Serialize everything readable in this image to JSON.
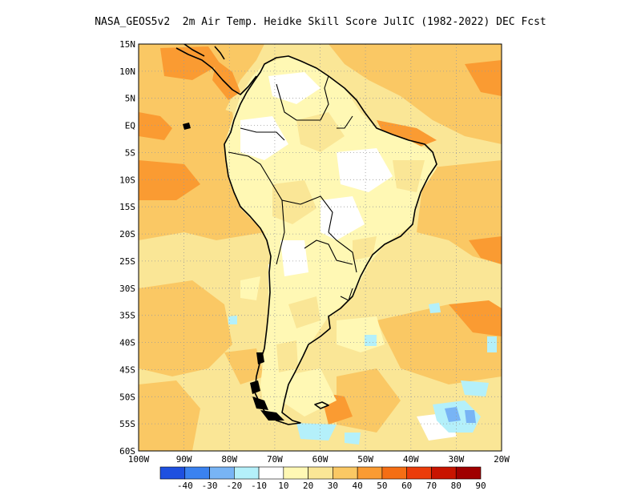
{
  "title": "NASA_GEOS5v2  2m Air Temp. Heidke Skill Score JulIC (1982-2022) DEC Fcst",
  "map": {
    "lon_range": [
      -100,
      -20
    ],
    "lat_range": [
      -60,
      15
    ],
    "grid": "dotted",
    "lat_labels": [
      "15N",
      "10N",
      "5N",
      "EQ",
      "5S",
      "10S",
      "15S",
      "20S",
      "25S",
      "30S",
      "35S",
      "40S",
      "45S",
      "50S",
      "55S",
      "60S"
    ],
    "lon_labels": [
      "100W",
      "90W",
      "80W",
      "70W",
      "60W",
      "50W",
      "40W",
      "30W",
      "20W"
    ]
  },
  "colorbar": {
    "labels": [
      "-40",
      "-30",
      "-20",
      "-10",
      "10",
      "20",
      "30",
      "40",
      "50",
      "60",
      "70",
      "80",
      "90"
    ],
    "colors": [
      "#1e50e0",
      "#3a82f0",
      "#78b4f5",
      "#b4f0fa",
      "#ffffff",
      "#fff8b4",
      "#fae696",
      "#fac864",
      "#fa9b32",
      "#f56e14",
      "#eb3c0a",
      "#c81400",
      "#a00000"
    ]
  }
}
